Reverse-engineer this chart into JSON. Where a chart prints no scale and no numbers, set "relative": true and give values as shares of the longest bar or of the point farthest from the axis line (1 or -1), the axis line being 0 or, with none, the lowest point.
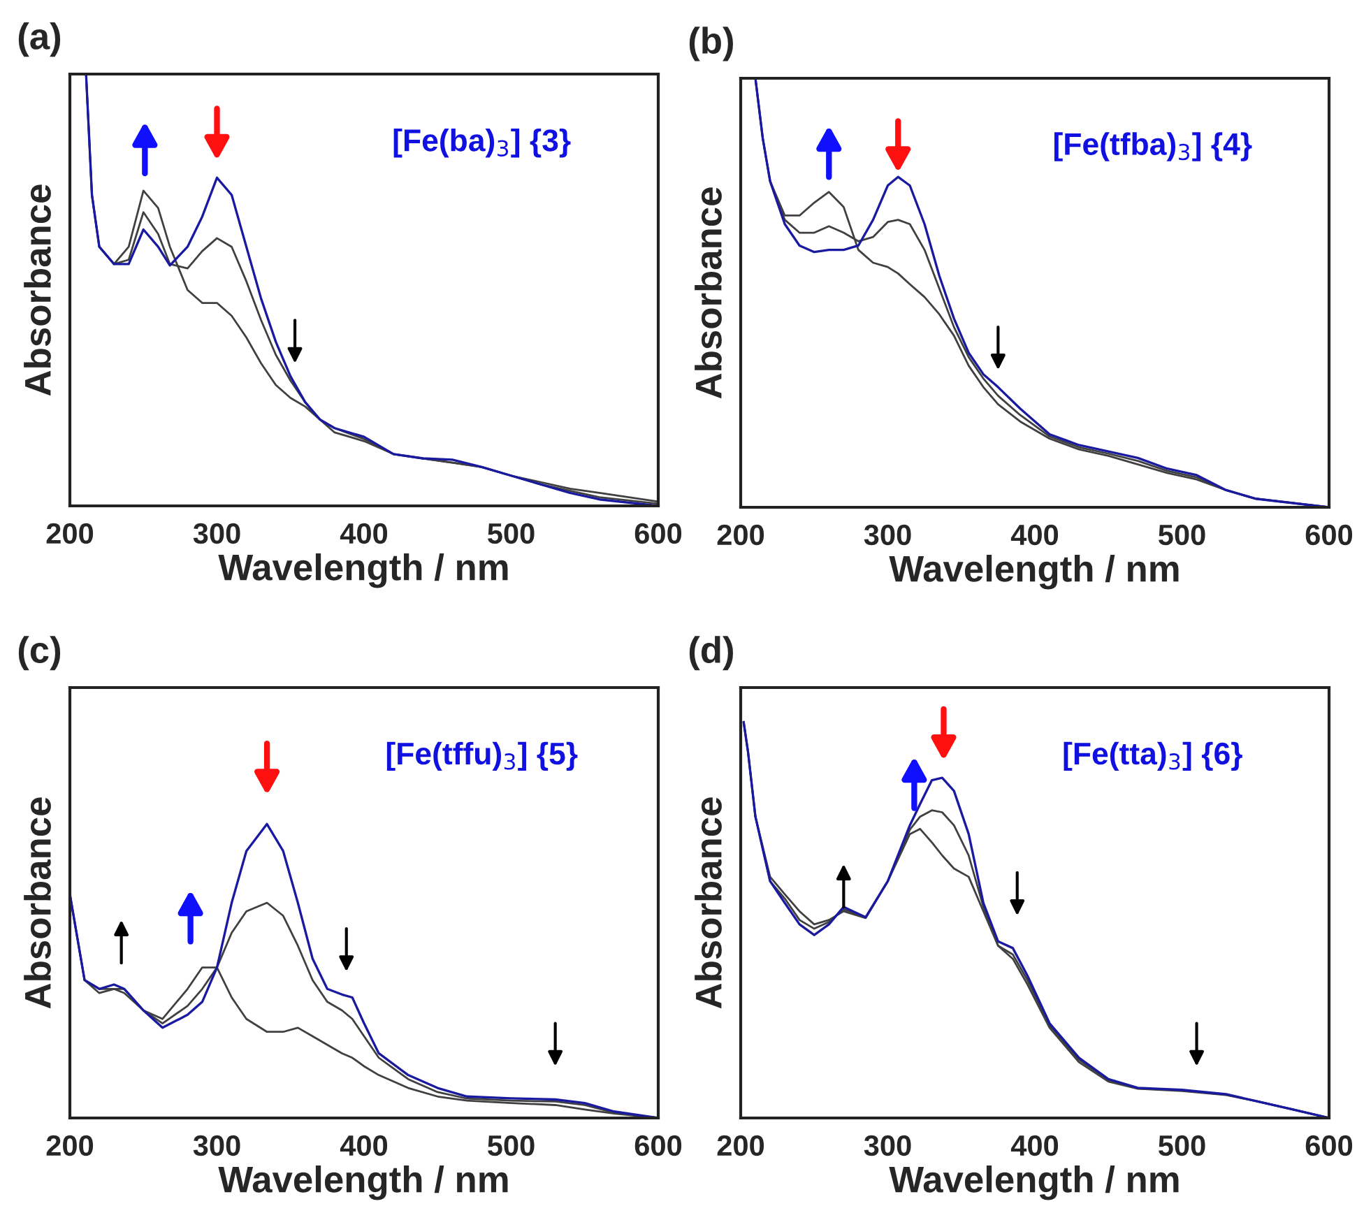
{
  "chart_data": [
    {
      "type": "line",
      "title": "(a)",
      "xlabel": "Wavelength / nm",
      "ylabel": "Absorbance",
      "relative": true,
      "xlim": [
        200,
        600
      ],
      "xticks": [
        200,
        300,
        400,
        500,
        600
      ],
      "grid": false,
      "legend": false,
      "marker": "none",
      "line_style": "solid",
      "x": [
        211,
        215,
        220,
        230,
        240,
        250,
        260,
        268,
        280,
        290,
        300,
        310,
        320,
        330,
        340,
        350,
        360,
        370,
        380,
        400,
        420,
        440,
        460,
        480,
        500,
        520,
        540,
        560,
        600
      ],
      "series": [
        {
          "color": "#404040",
          "values": [
            1.0,
            0.72,
            0.6,
            0.56,
            0.6,
            0.73,
            0.69,
            0.6,
            0.5,
            0.47,
            0.47,
            0.44,
            0.39,
            0.33,
            0.28,
            0.25,
            0.23,
            0.2,
            0.17,
            0.15,
            0.12,
            0.11,
            0.1,
            0.09,
            0.07,
            0.055,
            0.04,
            0.03,
            0.01
          ]
        },
        {
          "color": "#404040",
          "values": [
            1.0,
            0.72,
            0.6,
            0.56,
            0.57,
            0.68,
            0.63,
            0.56,
            0.55,
            0.59,
            0.62,
            0.6,
            0.52,
            0.43,
            0.35,
            0.29,
            0.24,
            0.2,
            0.18,
            0.155,
            0.12,
            0.11,
            0.1,
            0.09,
            0.07,
            0.05,
            0.035,
            0.02,
            0.005
          ]
        },
        {
          "color": "#1a1aa0",
          "values": [
            1.0,
            0.72,
            0.6,
            0.56,
            0.56,
            0.64,
            0.6,
            0.557,
            0.6,
            0.67,
            0.76,
            0.72,
            0.6,
            0.48,
            0.38,
            0.3,
            0.24,
            0.2,
            0.18,
            0.16,
            0.12,
            0.11,
            0.107,
            0.09,
            0.07,
            0.05,
            0.03,
            0.015,
            0.0
          ]
        }
      ],
      "annotations": [
        "[Fe(ba)$_{3}$] {3}"
      ]
    },
    {
      "type": "line",
      "title": "(b)",
      "xlabel": "Wavelength / nm",
      "ylabel": "Absorbance",
      "relative": true,
      "xlim": [
        200,
        600
      ],
      "xticks": [
        200,
        300,
        400,
        500,
        600
      ],
      "grid": false,
      "legend": false,
      "marker": "none",
      "line_style": "solid",
      "x": [
        210,
        215,
        220,
        230,
        240,
        250,
        260,
        270,
        280,
        290,
        300,
        307,
        315,
        325,
        335,
        345,
        355,
        365,
        375,
        390,
        410,
        430,
        450,
        470,
        490,
        510,
        530,
        550,
        600
      ],
      "series": [
        {
          "color": "#404040",
          "values": [
            1.0,
            0.86,
            0.76,
            0.68,
            0.68,
            0.71,
            0.735,
            0.7,
            0.6,
            0.57,
            0.56,
            0.545,
            0.52,
            0.49,
            0.45,
            0.4,
            0.33,
            0.28,
            0.24,
            0.2,
            0.16,
            0.135,
            0.12,
            0.1,
            0.08,
            0.065,
            0.04,
            0.02,
            0.0
          ]
        },
        {
          "color": "#404040",
          "values": [
            1.0,
            0.86,
            0.76,
            0.67,
            0.64,
            0.64,
            0.655,
            0.64,
            0.62,
            0.63,
            0.665,
            0.67,
            0.66,
            0.6,
            0.51,
            0.42,
            0.35,
            0.3,
            0.26,
            0.215,
            0.165,
            0.14,
            0.125,
            0.108,
            0.085,
            0.07,
            0.04,
            0.02,
            0.0
          ]
        },
        {
          "color": "#1a1aa0",
          "values": [
            1.0,
            0.86,
            0.76,
            0.66,
            0.61,
            0.595,
            0.6,
            0.6,
            0.61,
            0.67,
            0.75,
            0.77,
            0.75,
            0.66,
            0.54,
            0.44,
            0.36,
            0.31,
            0.28,
            0.23,
            0.17,
            0.145,
            0.13,
            0.115,
            0.09,
            0.075,
            0.04,
            0.02,
            0.0
          ]
        }
      ],
      "annotations": [
        "[Fe(tfba)$_{3}$] {4}"
      ]
    },
    {
      "type": "line",
      "title": "(c)",
      "xlabel": "Wavelength / nm",
      "ylabel": "Absorbance",
      "relative": true,
      "xlim": [
        200,
        600
      ],
      "xticks": [
        200,
        300,
        400,
        500,
        600
      ],
      "grid": false,
      "legend": false,
      "marker": "none",
      "line_style": "solid",
      "x": [
        200,
        210,
        220,
        230,
        237,
        250,
        263,
        280,
        290,
        300,
        310,
        320,
        334,
        345,
        355,
        365,
        375,
        385,
        392,
        400,
        410,
        430,
        450,
        470,
        500,
        530,
        550,
        570,
        600
      ],
      "series": [
        {
          "color": "#404040",
          "values": [
            0.761,
            0.469,
            0.425,
            0.439,
            0.425,
            0.366,
            0.337,
            0.439,
            0.512,
            0.512,
            0.41,
            0.337,
            0.293,
            0.293,
            0.307,
            0.278,
            0.249,
            0.22,
            0.205,
            0.176,
            0.146,
            0.102,
            0.073,
            0.059,
            0.051,
            0.044,
            0.029,
            0.015,
            0.0
          ]
        },
        {
          "color": "#404040",
          "values": [
            0.761,
            0.469,
            0.439,
            0.439,
            0.439,
            0.366,
            0.322,
            0.381,
            0.439,
            0.512,
            0.63,
            0.703,
            0.732,
            0.688,
            0.586,
            0.469,
            0.395,
            0.366,
            0.337,
            0.278,
            0.205,
            0.132,
            0.088,
            0.066,
            0.059,
            0.056,
            0.044,
            0.018,
            0.0
          ]
        },
        {
          "color": "#1a1aa0",
          "values": [
            0.761,
            0.469,
            0.439,
            0.454,
            0.439,
            0.366,
            0.307,
            0.351,
            0.395,
            0.512,
            0.732,
            0.908,
            1.0,
            0.908,
            0.732,
            0.542,
            0.439,
            0.42,
            0.41,
            0.322,
            0.22,
            0.146,
            0.102,
            0.073,
            0.067,
            0.063,
            0.051,
            0.022,
            0.0
          ]
        }
      ],
      "annotations": [
        "[Fe(tffu)$_{3}$] {5}"
      ]
    },
    {
      "type": "line",
      "title": "(d)",
      "xlabel": "Wavelength / nm",
      "ylabel": "Absorbance",
      "relative": true,
      "xlim": [
        200,
        600
      ],
      "xticks": [
        200,
        300,
        400,
        500,
        600
      ],
      "grid": false,
      "legend": false,
      "marker": "none",
      "line_style": "solid",
      "x": [
        202,
        205,
        210,
        220,
        230,
        240,
        250,
        260,
        270,
        285,
        300,
        315,
        322,
        330,
        337,
        345,
        355,
        365,
        375,
        385,
        395,
        410,
        430,
        450,
        470,
        500,
        530,
        550,
        575,
        600
      ],
      "series": [
        {
          "color": "#404040",
          "values": [
            1.0,
            0.924,
            0.761,
            0.609,
            0.565,
            0.522,
            0.489,
            0.5,
            0.522,
            0.505,
            0.598,
            0.717,
            0.73,
            0.696,
            0.663,
            0.63,
            0.609,
            0.522,
            0.435,
            0.402,
            0.337,
            0.228,
            0.141,
            0.092,
            0.074,
            0.068,
            0.058,
            0.043,
            0.022,
            0.0
          ]
        },
        {
          "color": "#404040",
          "values": [
            1.0,
            0.924,
            0.761,
            0.598,
            0.554,
            0.5,
            0.478,
            0.495,
            0.527,
            0.507,
            0.598,
            0.728,
            0.761,
            0.777,
            0.772,
            0.739,
            0.663,
            0.533,
            0.435,
            0.413,
            0.348,
            0.234,
            0.147,
            0.096,
            0.075,
            0.07,
            0.059,
            0.043,
            0.022,
            0.0
          ]
        },
        {
          "color": "#1a1aa0",
          "values": [
            1.0,
            0.924,
            0.761,
            0.598,
            0.543,
            0.489,
            0.462,
            0.489,
            0.533,
            0.507,
            0.598,
            0.739,
            0.793,
            0.853,
            0.859,
            0.826,
            0.717,
            0.543,
            0.446,
            0.429,
            0.359,
            0.239,
            0.152,
            0.098,
            0.076,
            0.071,
            0.06,
            0.043,
            0.022,
            0.0
          ]
        }
      ],
      "annotations": [
        "[Fe(tta)$_{3}$] {6}"
      ]
    }
  ]
}
